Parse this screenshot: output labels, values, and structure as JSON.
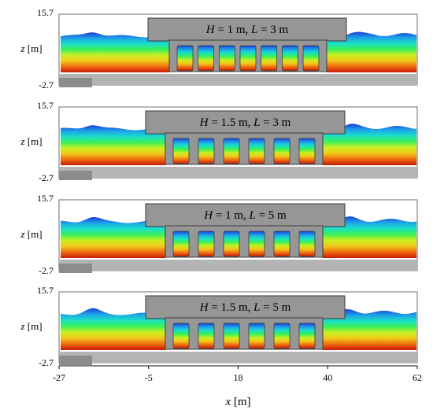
{
  "panels": [
    {
      "id": "p1",
      "H": "1",
      "L": "3",
      "chambers": 7
    },
    {
      "id": "p2",
      "H": "1.5",
      "L": "3",
      "chambers": 6
    },
    {
      "id": "p3",
      "H": "1",
      "L": "5",
      "chambers": 6
    },
    {
      "id": "p4",
      "H": "1.5",
      "L": "5",
      "chambers": 6
    }
  ],
  "y_axis": {
    "label_var": "z",
    "label_unit": " [m]",
    "top": "15.7",
    "bottom": "-2.7"
  },
  "x_axis": {
    "label_var": "x",
    "label_unit": " [m]",
    "ticks": [
      "-27",
      "-5",
      "18",
      "40",
      "62"
    ]
  },
  "label_text": {
    "H": "H",
    "L": "L",
    "eq": " = ",
    "unit": " m",
    "sep": ", "
  },
  "colors": {
    "structure": "#969696",
    "structure_edge": "#3c3c3c",
    "gradient": [
      "#1a3fd6",
      "#1ea0ea",
      "#19e0c8",
      "#3af05a",
      "#c8f020",
      "#f2c81a",
      "#f06a10",
      "#c81a08"
    ],
    "tank_floor": "#b4b4b4"
  }
}
